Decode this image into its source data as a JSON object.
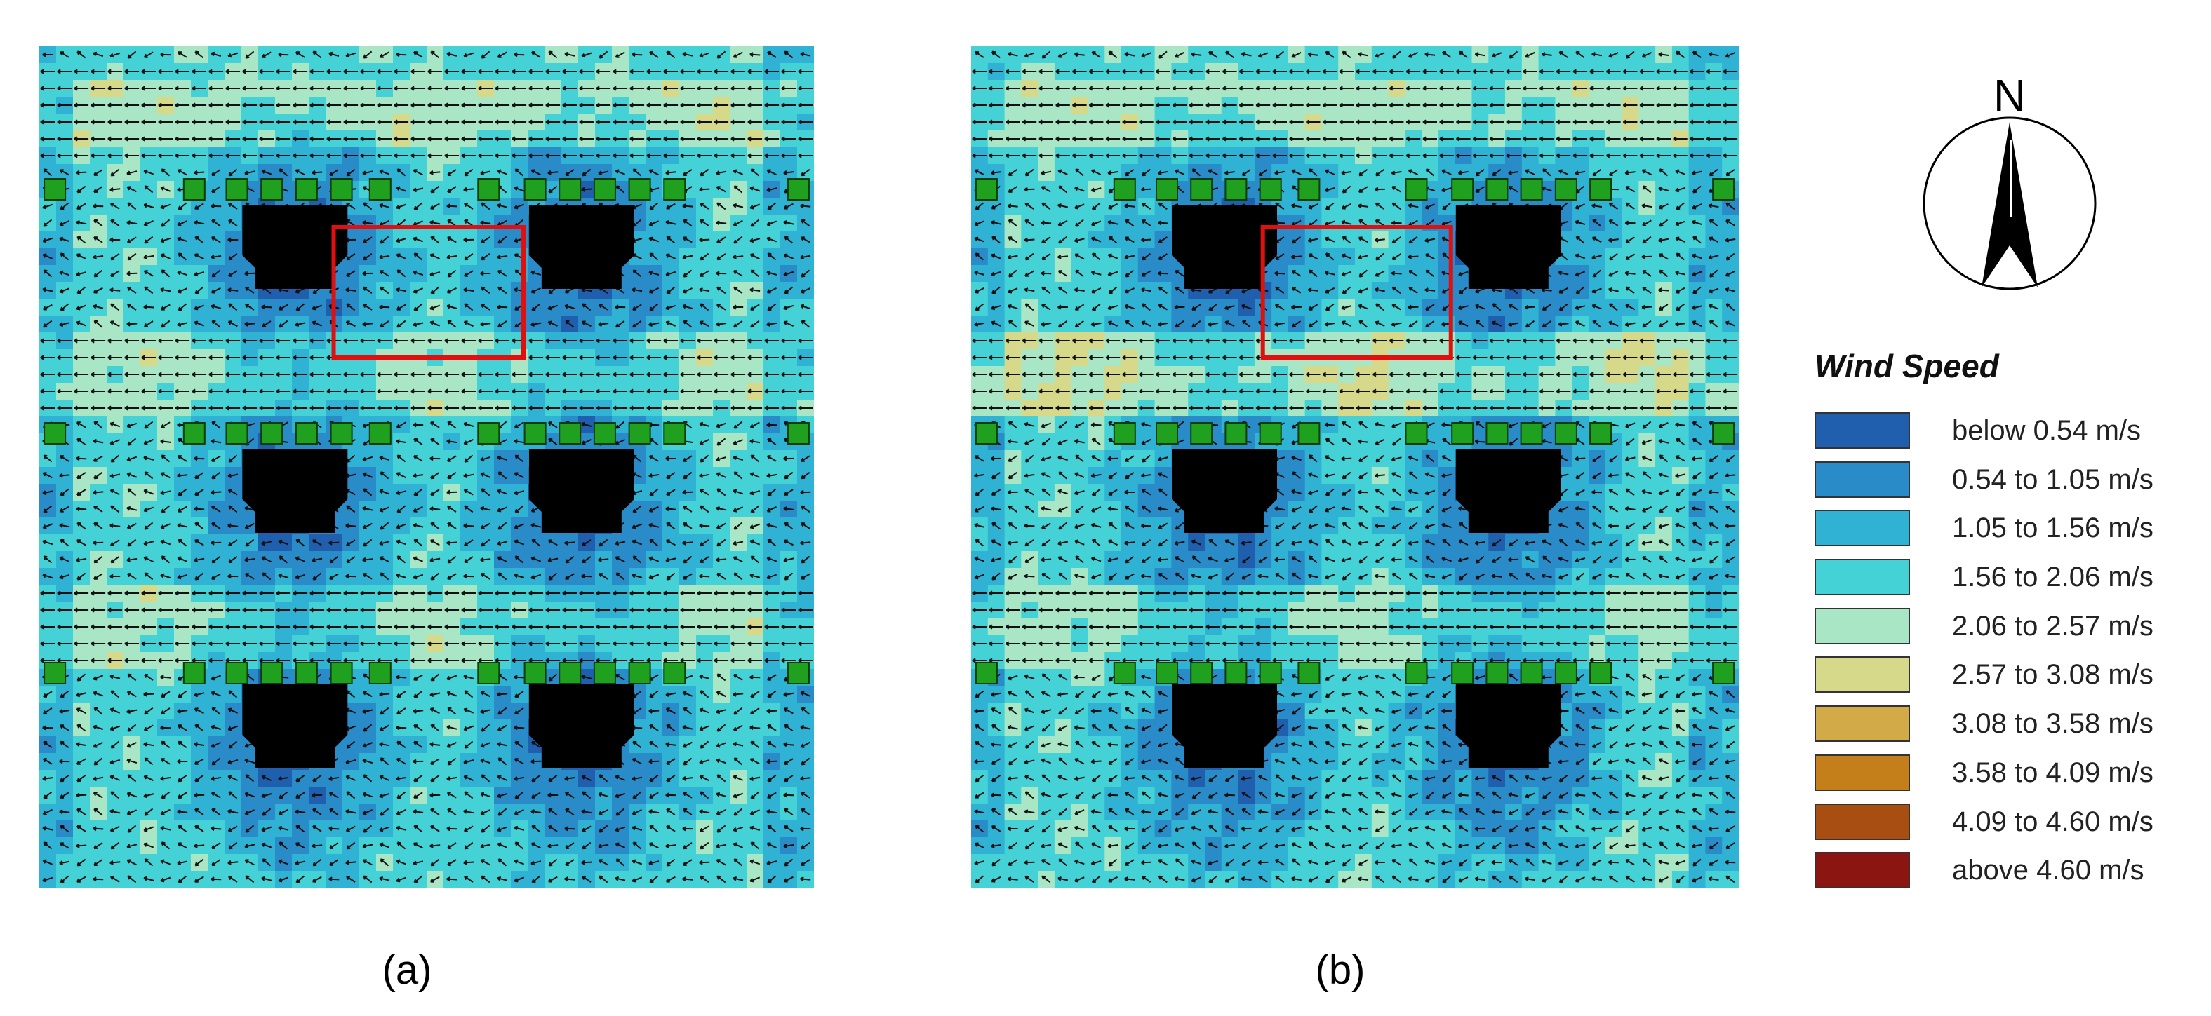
{
  "panels": [
    {
      "id": "a",
      "label": "(a)"
    },
    {
      "id": "b",
      "label": "(b)"
    }
  ],
  "compass": {
    "letter": "N"
  },
  "legend": {
    "title": "Wind Speed",
    "items": [
      {
        "label": "below 0.54 m/s",
        "color": "#1f5fae"
      },
      {
        "label": "0.54 to 1.05 m/s",
        "color": "#2a8bc9"
      },
      {
        "label": "1.05 to 1.56 m/s",
        "color": "#2fb2d4"
      },
      {
        "label": "1.56 to 2.06 m/s",
        "color": "#44d2d6"
      },
      {
        "label": "2.06 to 2.57 m/s",
        "color": "#a8e6c6"
      },
      {
        "label": "2.57 to 3.08 m/s",
        "color": "#d6d98a"
      },
      {
        "label": "3.08 to 3.58 m/s",
        "color": "#d2aa47"
      },
      {
        "label": "3.58 to 4.09 m/s",
        "color": "#c47f1a"
      },
      {
        "label": "4.09 to 4.60 m/s",
        "color": "#a84e12"
      },
      {
        "label": "above 4.60 m/s",
        "color": "#8b1510"
      }
    ]
  }
}
